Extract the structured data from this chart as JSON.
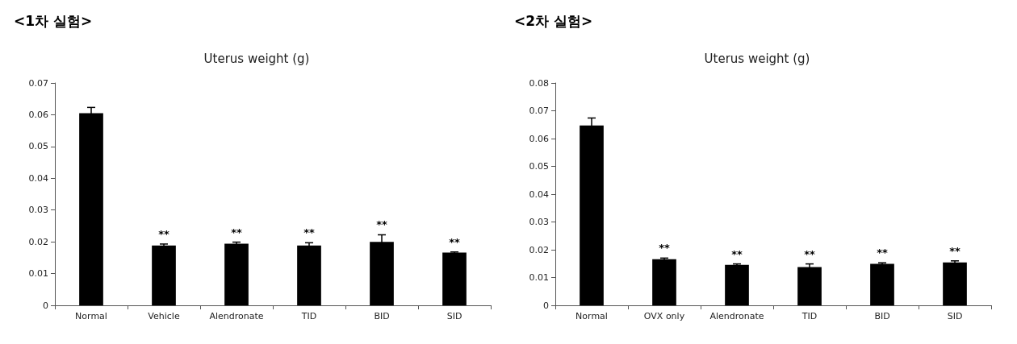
{
  "chart_data": [
    {
      "type": "bar",
      "title": "<1차 실험>",
      "subtitle": "Uterus weight (g)",
      "categories": [
        "Normal",
        "Vehicle",
        "Alendronate",
        "TID",
        "BID",
        "SID"
      ],
      "values": [
        0.0605,
        0.0188,
        0.0194,
        0.0188,
        0.02,
        0.0166
      ],
      "errors": [
        0.0018,
        0.0005,
        0.0005,
        0.0009,
        0.0022,
        0.0002
      ],
      "value_labels": [
        null,
        "**",
        "**",
        "**",
        "**",
        "**"
      ],
      "color": "#000000",
      "ylim": [
        0,
        0.07
      ],
      "yticks": [
        0,
        0.01,
        0.02,
        0.03,
        0.04,
        0.05,
        0.06,
        0.07
      ],
      "grid": false
    },
    {
      "type": "bar",
      "title": "<2차 실험>",
      "subtitle": "Uterus weight (g)",
      "categories": [
        "Normal",
        "OVX only",
        "Alendronate",
        "TID",
        "BID",
        "SID"
      ],
      "values": [
        0.0647,
        0.0166,
        0.0146,
        0.0138,
        0.0149,
        0.0154
      ],
      "errors": [
        0.0027,
        0.0004,
        0.0003,
        0.0011,
        0.0004,
        0.0006
      ],
      "value_labels": [
        null,
        "**",
        "**",
        "**",
        "**",
        "**"
      ],
      "color": "#000000",
      "ylim": [
        0,
        0.08
      ],
      "yticks": [
        0,
        0.01,
        0.02,
        0.03,
        0.04,
        0.05,
        0.06,
        0.07,
        0.08
      ],
      "grid": false
    }
  ]
}
